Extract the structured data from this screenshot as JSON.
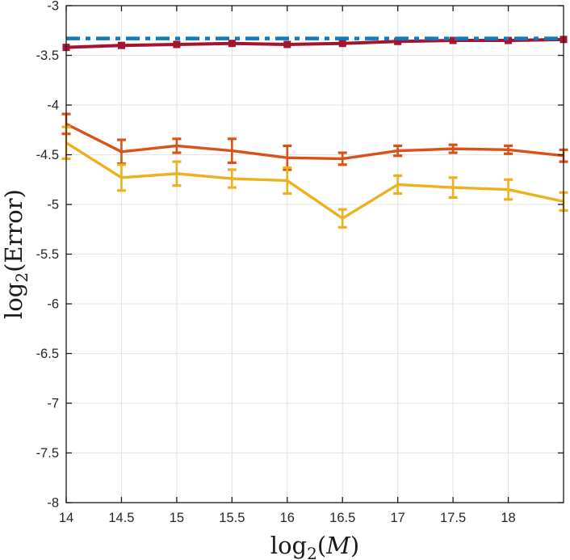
{
  "figure": {
    "background": "#ffffff",
    "axis_color": "#1a1a1a",
    "grid_color": "#e4e4e4",
    "tick_label_color": "#262626",
    "xlabel_runs": [
      {
        "t": "log",
        "italic": false,
        "sub": false
      },
      {
        "t": "2",
        "italic": false,
        "sub": true
      },
      {
        "t": "(",
        "italic": false,
        "sub": false
      },
      {
        "t": "M",
        "italic": true,
        "sub": false
      },
      {
        "t": ")",
        "italic": false,
        "sub": false
      }
    ],
    "ylabel_runs": [
      {
        "t": "log",
        "italic": false,
        "sub": false
      },
      {
        "t": "2",
        "italic": false,
        "sub": true
      },
      {
        "t": "(Error)",
        "italic": false,
        "sub": false
      }
    ]
  },
  "chart_data": {
    "type": "line",
    "title": "",
    "xlabel": "log2(M)",
    "ylabel": "log2(Error)",
    "xlim": [
      14,
      18.5
    ],
    "ylim": [
      -8,
      -3
    ],
    "grid": true,
    "legend": "none",
    "xticks": [
      14,
      14.5,
      15,
      15.5,
      16,
      16.5,
      17,
      17.5,
      18
    ],
    "xtick_labels": [
      "14",
      "14.5",
      "15",
      "15.5",
      "16",
      "16.5",
      "17",
      "17.5",
      "18"
    ],
    "yticks": [
      -8,
      -7.5,
      -7,
      -6.5,
      -6,
      -5.5,
      -5,
      -4.5,
      -4,
      -3.5,
      -3
    ],
    "ytick_labels": [
      "-8",
      "-7.5",
      "-7",
      "-6.5",
      "-6",
      "-5.5",
      "-5",
      "-4.5",
      "-4",
      "-3.5",
      "-3"
    ],
    "x": [
      14,
      14.5,
      15,
      15.5,
      16,
      16.5,
      17,
      17.5,
      18,
      18.5
    ],
    "series": [
      {
        "name": "maroon-solid-squares",
        "color": "#A2142F",
        "style": "solid",
        "marker": "square",
        "line_width": 4,
        "values": [
          -3.42,
          -3.4,
          -3.39,
          -3.38,
          -3.39,
          -3.38,
          -3.36,
          -3.35,
          -3.35,
          -3.34
        ]
      },
      {
        "name": "orange-errorbar",
        "color": "#D95319",
        "style": "solid",
        "marker": "errorbar",
        "line_width": 3.4,
        "values": [
          -4.19,
          -4.47,
          -4.41,
          -4.46,
          -4.53,
          -4.54,
          -4.46,
          -4.44,
          -4.45,
          -4.51
        ],
        "yerr": [
          0.1,
          0.12,
          0.07,
          0.12,
          0.12,
          0.06,
          0.05,
          0.04,
          0.04,
          0.06
        ]
      },
      {
        "name": "yellow-errorbar",
        "color": "#EDB120",
        "style": "solid",
        "marker": "errorbar",
        "line_width": 3.4,
        "values": [
          -4.38,
          -4.73,
          -4.69,
          -4.74,
          -4.76,
          -5.14,
          -4.8,
          -4.83,
          -4.85,
          -4.97
        ],
        "yerr": [
          0.16,
          0.13,
          0.12,
          0.09,
          0.13,
          0.09,
          0.09,
          0.1,
          0.1,
          0.09
        ]
      },
      {
        "name": "blue-dashdot-reference",
        "color": "#0e7ac4",
        "style": "dashdot",
        "marker": "none",
        "line_width": 4.5,
        "values": [
          -3.33,
          -3.33,
          -3.33,
          -3.33,
          -3.33,
          -3.33,
          -3.33,
          -3.33,
          -3.33,
          -3.33
        ]
      }
    ]
  }
}
